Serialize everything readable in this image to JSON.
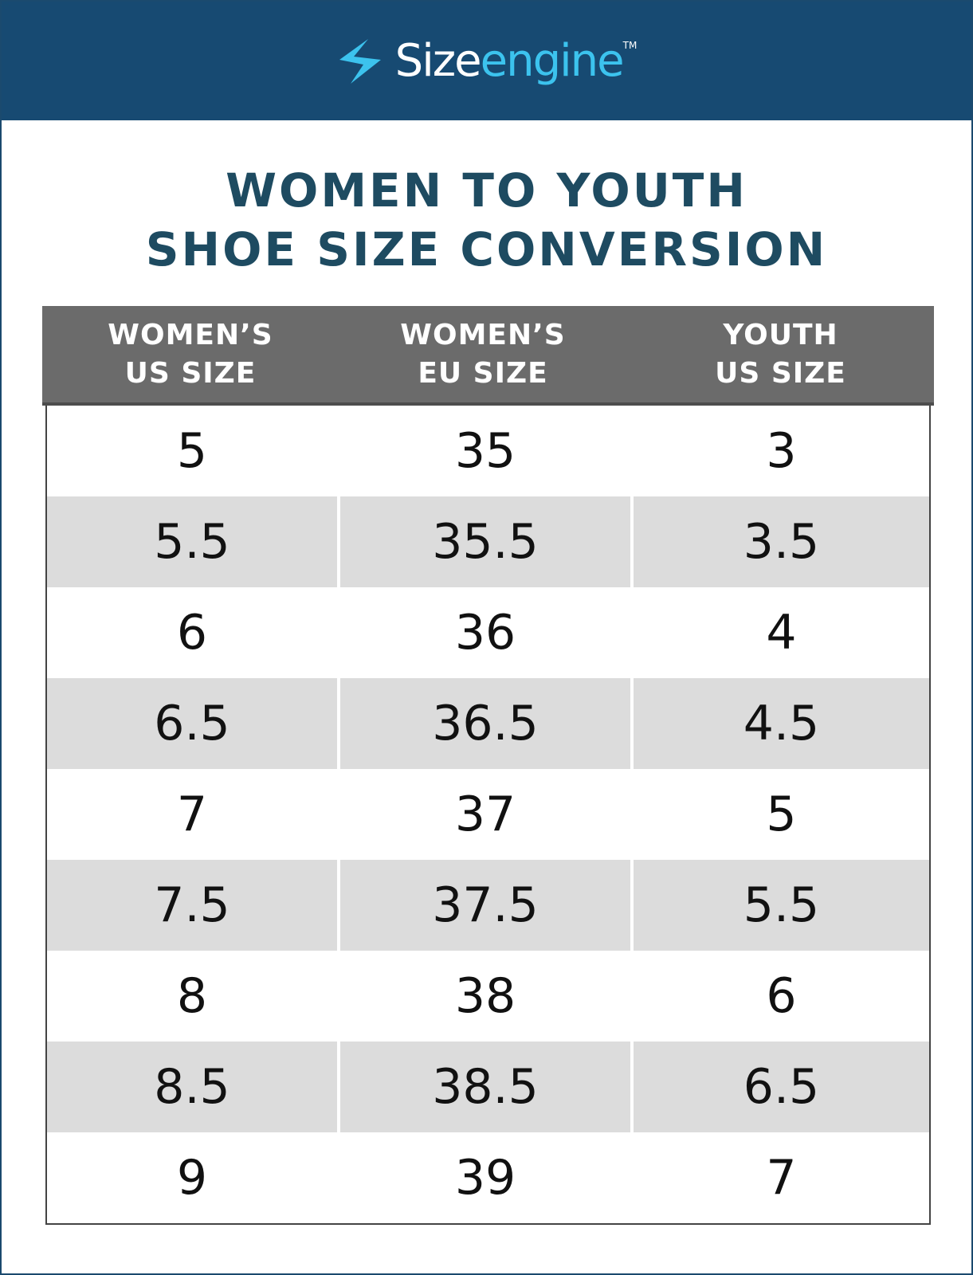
{
  "header": {
    "brand_part1": "Size",
    "brand_part2": "engine",
    "trademark": "TM"
  },
  "title": [
    "WOMEN TO YOUTH",
    "SHOE SIZE CONVERSION"
  ],
  "table": {
    "columns": [
      [
        "WOMEN’S",
        "US SIZE"
      ],
      [
        "WOMEN’S",
        "EU SIZE"
      ],
      [
        "YOUTH",
        "US SIZE"
      ]
    ],
    "rows": [
      [
        "5",
        "35",
        "3"
      ],
      [
        "5.5",
        "35.5",
        "3.5"
      ],
      [
        "6",
        "36",
        "4"
      ],
      [
        "6.5",
        "36.5",
        "4.5"
      ],
      [
        "7",
        "37",
        "5"
      ],
      [
        "7.5",
        "37.5",
        "5.5"
      ],
      [
        "8",
        "38",
        "6"
      ],
      [
        "8.5",
        "38.5",
        "6.5"
      ],
      [
        "9",
        "39",
        "7"
      ]
    ]
  }
}
